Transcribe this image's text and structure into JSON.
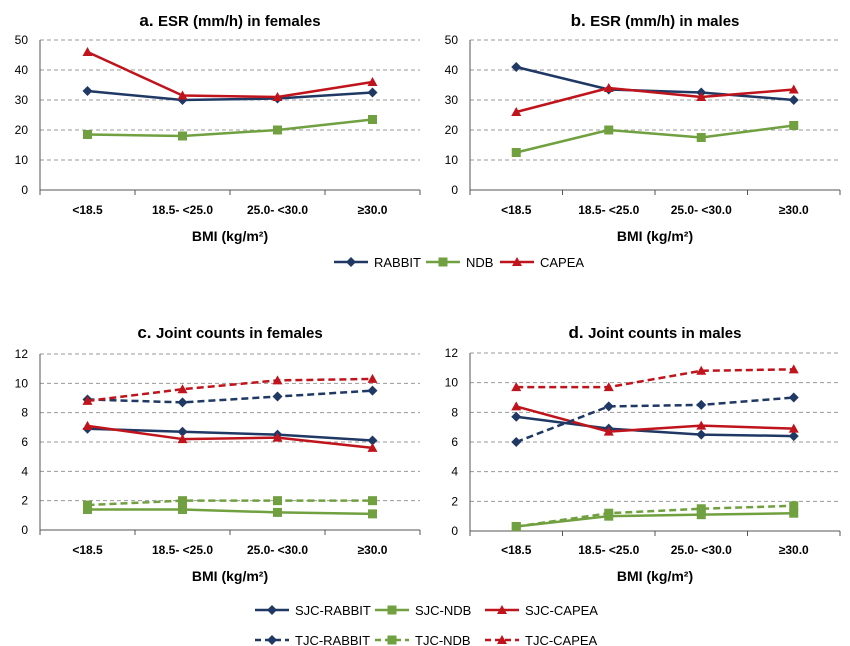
{
  "colors": {
    "rabbit": "#1f3864",
    "ndb": "#70a040",
    "capea": "#c0141c",
    "grid": "#9a9a9a"
  },
  "chart_data": [
    {
      "type": "line",
      "panel": "a.",
      "title": "ESR (mm/h) in females",
      "xlabel": "BMI (kg/m²)",
      "ylabel": "",
      "categories": [
        "<18.5",
        "18.5- <25.0",
        "25.0- <30.0",
        "≥30.0"
      ],
      "ylim": [
        0,
        50
      ],
      "yticks": [
        "0",
        "10",
        "20",
        "30",
        "40",
        "50"
      ],
      "grid": true,
      "series": [
        {
          "name": "RABBIT",
          "values": [
            33,
            30,
            30.5,
            32.5
          ],
          "color": "#1f3864",
          "marker": "diamond",
          "dash": false
        },
        {
          "name": "NDB",
          "values": [
            18.5,
            18,
            20,
            23.5
          ],
          "color": "#70a040",
          "marker": "square",
          "dash": false
        },
        {
          "name": "CAPEA",
          "values": [
            46,
            31.5,
            31,
            36
          ],
          "color": "#c0141c",
          "marker": "triangle",
          "dash": false
        }
      ]
    },
    {
      "type": "line",
      "panel": "b.",
      "title": "ESR (mm/h) in males",
      "xlabel": "BMI (kg/m²)",
      "ylabel": "",
      "categories": [
        "<18.5",
        "18.5- <25.0",
        "25.0- <30.0",
        "≥30.0"
      ],
      "ylim": [
        0,
        50
      ],
      "yticks": [
        "0",
        "10",
        "20",
        "30",
        "40",
        "50"
      ],
      "grid": true,
      "series": [
        {
          "name": "RABBIT",
          "values": [
            41,
            33.5,
            32.5,
            30
          ],
          "color": "#1f3864",
          "marker": "diamond",
          "dash": false
        },
        {
          "name": "NDB",
          "values": [
            12.5,
            20,
            17.5,
            21.5
          ],
          "color": "#70a040",
          "marker": "square",
          "dash": false
        },
        {
          "name": "CAPEA",
          "values": [
            26,
            34,
            31,
            33.5
          ],
          "color": "#c0141c",
          "marker": "triangle",
          "dash": false
        }
      ]
    },
    {
      "type": "line",
      "panel": "c.",
      "title": "Joint counts in females",
      "xlabel": "BMI (kg/m²)",
      "ylabel": "",
      "categories": [
        "<18.5",
        "18.5- <25.0",
        "25.0- <30.0",
        "≥30.0"
      ],
      "ylim": [
        0,
        12
      ],
      "yticks": [
        "0",
        "2",
        "4",
        "6",
        "8",
        "10",
        "12"
      ],
      "grid": true,
      "series": [
        {
          "name": "SJC-RABBIT",
          "values": [
            6.9,
            6.7,
            6.5,
            6.1
          ],
          "color": "#1f3864",
          "marker": "diamond",
          "dash": false
        },
        {
          "name": "SJC-NDB",
          "values": [
            1.4,
            1.4,
            1.2,
            1.1
          ],
          "color": "#70a040",
          "marker": "square",
          "dash": false
        },
        {
          "name": "SJC-CAPEA",
          "values": [
            7.1,
            6.2,
            6.3,
            5.6
          ],
          "color": "#c0141c",
          "marker": "triangle",
          "dash": false
        },
        {
          "name": "TJC-RABBIT",
          "values": [
            8.9,
            8.7,
            9.1,
            9.5
          ],
          "color": "#1f3864",
          "marker": "diamond",
          "dash": true
        },
        {
          "name": "TJC-NDB",
          "values": [
            1.7,
            2.0,
            2.0,
            2.0
          ],
          "color": "#70a040",
          "marker": "square",
          "dash": true
        },
        {
          "name": "TJC-CAPEA",
          "values": [
            8.8,
            9.6,
            10.2,
            10.3
          ],
          "color": "#c0141c",
          "marker": "triangle",
          "dash": true
        }
      ]
    },
    {
      "type": "line",
      "panel": "d.",
      "title": "Joint counts in males",
      "xlabel": "BMI (kg/m²)",
      "ylabel": "",
      "categories": [
        "<18.5",
        "18.5- <25.0",
        "25.0- <30.0",
        "≥30.0"
      ],
      "ylim": [
        0,
        12
      ],
      "yticks": [
        "0",
        "2",
        "4",
        "6",
        "8",
        "10",
        "12"
      ],
      "grid": true,
      "series": [
        {
          "name": "SJC-RABBIT",
          "values": [
            7.7,
            6.9,
            6.5,
            6.4
          ],
          "color": "#1f3864",
          "marker": "diamond",
          "dash": false
        },
        {
          "name": "SJC-NDB",
          "values": [
            0.3,
            1.0,
            1.1,
            1.2
          ],
          "color": "#70a040",
          "marker": "square",
          "dash": false
        },
        {
          "name": "SJC-CAPEA",
          "values": [
            8.4,
            6.7,
            7.1,
            6.9
          ],
          "color": "#c0141c",
          "marker": "triangle",
          "dash": false
        },
        {
          "name": "TJC-RABBIT",
          "values": [
            6.0,
            8.4,
            8.5,
            9.0
          ],
          "color": "#1f3864",
          "marker": "diamond",
          "dash": true
        },
        {
          "name": "TJC-NDB",
          "values": [
            0.3,
            1.2,
            1.5,
            1.7
          ],
          "color": "#70a040",
          "marker": "square",
          "dash": true
        },
        {
          "name": "TJC-CAPEA",
          "values": [
            9.7,
            9.7,
            10.8,
            10.9
          ],
          "color": "#c0141c",
          "marker": "triangle",
          "dash": true
        }
      ]
    }
  ],
  "legends": [
    {
      "entries": [
        {
          "label": "RABBIT",
          "color": "#1f3864",
          "marker": "diamond",
          "dash": false
        },
        {
          "label": "NDB",
          "color": "#70a040",
          "marker": "square",
          "dash": false
        },
        {
          "label": "CAPEA",
          "color": "#c0141c",
          "marker": "triangle",
          "dash": false
        }
      ]
    },
    {
      "entries": [
        {
          "label": "SJC-RABBIT",
          "color": "#1f3864",
          "marker": "diamond",
          "dash": false
        },
        {
          "label": "SJC-NDB",
          "color": "#70a040",
          "marker": "square",
          "dash": false
        },
        {
          "label": "SJC-CAPEA",
          "color": "#c0141c",
          "marker": "triangle",
          "dash": false
        },
        {
          "label": "TJC-RABBIT",
          "color": "#1f3864",
          "marker": "diamond",
          "dash": true
        },
        {
          "label": "TJC-NDB",
          "color": "#70a040",
          "marker": "square",
          "dash": true
        },
        {
          "label": "TJC-CAPEA",
          "color": "#c0141c",
          "marker": "triangle",
          "dash": true
        }
      ]
    }
  ]
}
